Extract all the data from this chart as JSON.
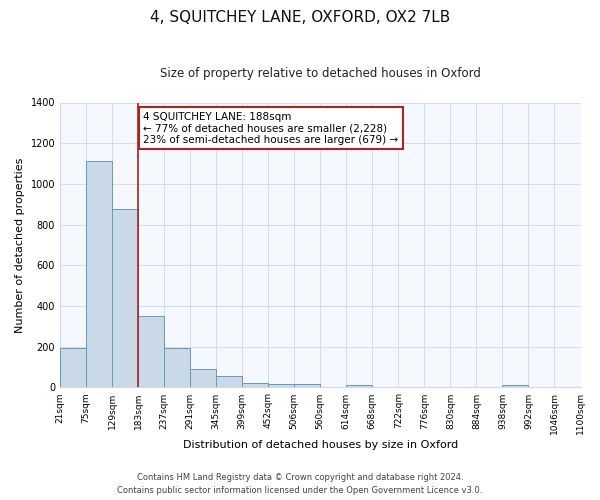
{
  "title": "4, SQUITCHEY LANE, OXFORD, OX2 7LB",
  "subtitle": "Size of property relative to detached houses in Oxford",
  "xlabel": "Distribution of detached houses by size in Oxford",
  "ylabel": "Number of detached properties",
  "bar_heights": [
    195,
    1115,
    875,
    350,
    195,
    90,
    55,
    20,
    15,
    15,
    0,
    10,
    0,
    0,
    0,
    0,
    0,
    10,
    0,
    0
  ],
  "bin_labels": [
    "21sqm",
    "75sqm",
    "129sqm",
    "183sqm",
    "237sqm",
    "291sqm",
    "345sqm",
    "399sqm",
    "452sqm",
    "506sqm",
    "560sqm",
    "614sqm",
    "668sqm",
    "722sqm",
    "776sqm",
    "830sqm",
    "884sqm",
    "938sqm",
    "992sqm",
    "1046sqm",
    "1100sqm"
  ],
  "bar_color": "#cad9e8",
  "bar_edge_color": "#6699bb",
  "vline_x": 3,
  "vline_color": "#aa2222",
  "annotation_box_facecolor": "#ffffff",
  "annotation_box_edgecolor": "#aa2222",
  "annotation_line1": "4 SQUITCHEY LANE: 188sqm",
  "annotation_line2": "← 77% of detached houses are smaller (2,228)",
  "annotation_line3": "23% of semi-detached houses are larger (679) →",
  "ylim": [
    0,
    1400
  ],
  "yticks": [
    0,
    200,
    400,
    600,
    800,
    1000,
    1200,
    1400
  ],
  "fig_bg_color": "#ffffff",
  "plot_bg_color": "#f5f8fc",
  "footer_line1": "Contains HM Land Registry data © Crown copyright and database right 2024.",
  "footer_line2": "Contains public sector information licensed under the Open Government Licence v3.0.",
  "grid_color": "#d0d8e4",
  "tick_label_fontsize": 6.5,
  "ylabel_fontsize": 8,
  "xlabel_fontsize": 8,
  "title_fontsize": 11,
  "subtitle_fontsize": 8.5,
  "footer_fontsize": 6.0
}
